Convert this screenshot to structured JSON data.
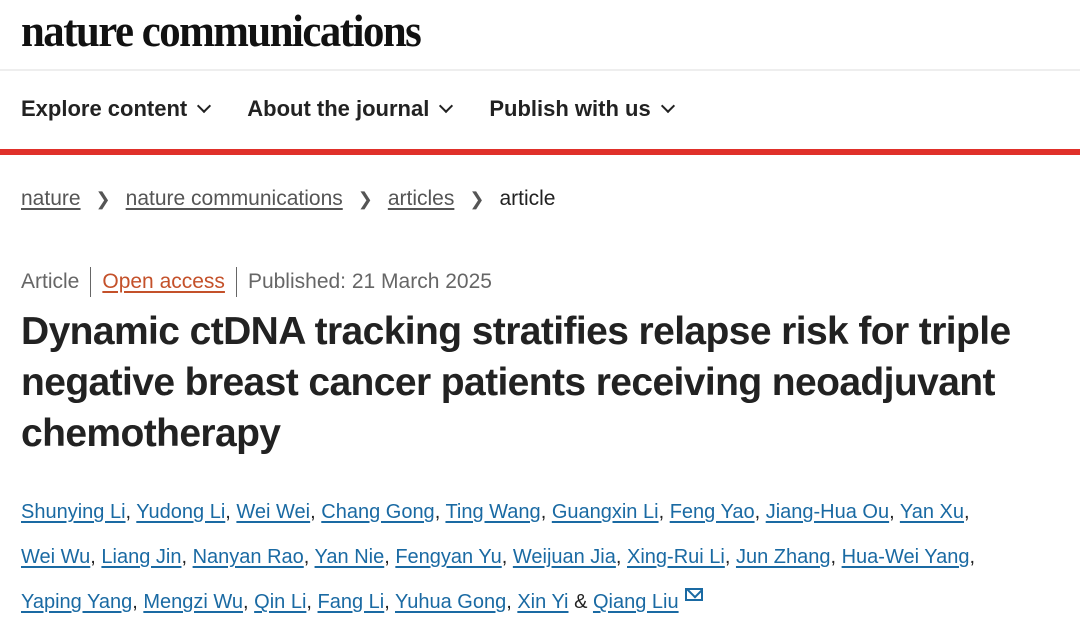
{
  "header": {
    "logo": "nature communications"
  },
  "nav": [
    {
      "label": "Explore content"
    },
    {
      "label": "About the journal"
    },
    {
      "label": "Publish with us"
    }
  ],
  "breadcrumb": [
    "nature",
    "nature communications",
    "articles",
    "article"
  ],
  "meta": {
    "type": "Article",
    "access": "Open access",
    "published": "Published: 21 March 2025"
  },
  "title": "Dynamic ctDNA tracking stratifies relapse risk for triple negative breast cancer patients receiving neoadjuvant chemotherapy",
  "authors": {
    "lines": [
      [
        "Shunying Li",
        "Yudong Li",
        "Wei Wei",
        "Chang Gong",
        "Ting Wang",
        "Guangxin Li",
        "Feng Yao",
        "Jiang-Hua Ou",
        "Yan Xu"
      ],
      [
        "Wei Wu",
        "Liang Jin",
        "Nanyan Rao",
        "Yan Nie",
        "Fengyan Yu",
        "Weijuan Jia",
        "Xing-Rui Li",
        "Jun Zhang",
        "Hua-Wei Yang"
      ],
      [
        "Yaping Yang",
        "Mengzi Wu",
        "Qin Li",
        "Fang Li",
        "Yuhua Gong",
        "Xin Yi"
      ]
    ],
    "conjunction": "&",
    "last": "Qiang Liu",
    "contact_icon": "mail-icon"
  },
  "colors": {
    "accent_red": "#e0302a",
    "link_blue": "#1a6aa3",
    "open_access": "#c4512a"
  }
}
